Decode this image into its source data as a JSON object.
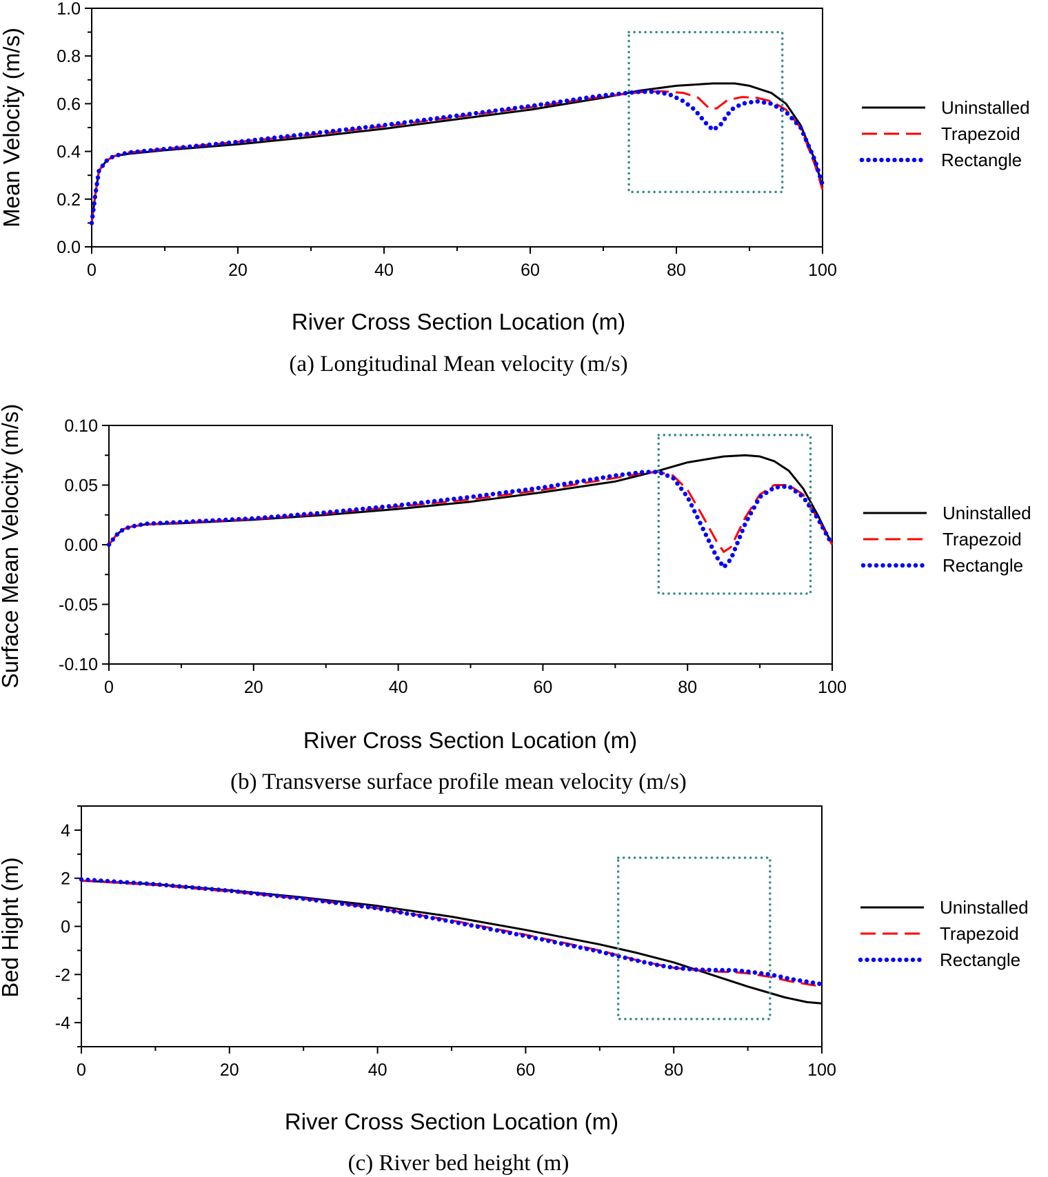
{
  "chart_data": [
    {
      "type": "line",
      "caption": "(a) Longitudinal Mean velocity (m/s)",
      "xlabel": "River Cross Section Location (m)",
      "ylabel": "Mean Velocity (m/s)",
      "xlim": [
        0,
        100
      ],
      "ylim": [
        0.0,
        1.0
      ],
      "xticks": [
        0,
        20,
        40,
        60,
        80,
        100
      ],
      "yticks": [
        0.0,
        0.2,
        0.4,
        0.6,
        0.8,
        1.0
      ],
      "xtick_labels": [
        "0",
        "20",
        "40",
        "60",
        "80",
        "100"
      ],
      "ytick_labels": [
        "0.0",
        "0.2",
        "0.4",
        "0.6",
        "0.8",
        "1.0"
      ],
      "highlight_box": {
        "x": [
          73.5,
          94.5
        ],
        "y": [
          0.23,
          0.9
        ]
      },
      "legend_position": "right",
      "series": [
        {
          "name": "Uninstalled",
          "x": [
            0,
            0.5,
            1,
            2,
            3,
            5,
            10,
            20,
            30,
            40,
            50,
            60,
            70,
            75,
            80,
            85,
            88,
            90,
            93,
            95,
            97,
            99,
            100
          ],
          "y": [
            0.1,
            0.22,
            0.32,
            0.36,
            0.38,
            0.39,
            0.405,
            0.43,
            0.46,
            0.495,
            0.535,
            0.575,
            0.625,
            0.655,
            0.675,
            0.685,
            0.685,
            0.675,
            0.645,
            0.6,
            0.51,
            0.36,
            0.25
          ]
        },
        {
          "name": "Trapezoid",
          "x": [
            0,
            0.5,
            1,
            2,
            3,
            5,
            10,
            20,
            30,
            40,
            50,
            60,
            70,
            75,
            78,
            81,
            83,
            84.5,
            85.5,
            87,
            89,
            91,
            93,
            95,
            97,
            99,
            100
          ],
          "y": [
            0.1,
            0.22,
            0.32,
            0.36,
            0.38,
            0.395,
            0.41,
            0.44,
            0.47,
            0.505,
            0.545,
            0.585,
            0.63,
            0.648,
            0.652,
            0.645,
            0.625,
            0.58,
            0.58,
            0.615,
            0.628,
            0.625,
            0.61,
            0.575,
            0.5,
            0.34,
            0.24
          ]
        },
        {
          "name": "Rectangle",
          "x": [
            0,
            0.5,
            1,
            2,
            3,
            5,
            10,
            20,
            30,
            40,
            50,
            60,
            70,
            75,
            77,
            79,
            81,
            82.5,
            84,
            85,
            86,
            87.5,
            89,
            91,
            93,
            95,
            97,
            99,
            100
          ],
          "y": [
            0.1,
            0.22,
            0.32,
            0.36,
            0.38,
            0.395,
            0.41,
            0.44,
            0.475,
            0.51,
            0.55,
            0.59,
            0.635,
            0.65,
            0.65,
            0.64,
            0.61,
            0.575,
            0.52,
            0.49,
            0.51,
            0.575,
            0.6,
            0.61,
            0.6,
            0.565,
            0.5,
            0.36,
            0.26
          ]
        }
      ]
    },
    {
      "type": "line",
      "caption": "(b) Transverse surface profile mean velocity (m/s)",
      "xlabel": "River Cross Section Location (m)",
      "ylabel": "Surface Mean Velocity (m/s)",
      "xlim": [
        0,
        100
      ],
      "ylim": [
        -0.1,
        0.1
      ],
      "xticks": [
        0,
        20,
        40,
        60,
        80,
        100
      ],
      "yticks": [
        -0.1,
        -0.05,
        0.0,
        0.05,
        0.1
      ],
      "xtick_labels": [
        "0",
        "20",
        "40",
        "60",
        "80",
        "100"
      ],
      "ytick_labels": [
        "-0.10",
        "-0.05",
        "0.00",
        "0.05",
        "0.10"
      ],
      "highlight_box": {
        "x": [
          76,
          97
        ],
        "y": [
          -0.041,
          0.092
        ]
      },
      "legend_position": "right",
      "series": [
        {
          "name": "Uninstalled",
          "x": [
            0,
            1,
            2,
            3,
            5,
            10,
            20,
            30,
            40,
            50,
            60,
            70,
            76,
            80,
            85,
            88,
            90,
            92,
            94,
            96,
            98,
            100
          ],
          "y": [
            0.0,
            0.008,
            0.013,
            0.015,
            0.017,
            0.018,
            0.021,
            0.025,
            0.03,
            0.036,
            0.044,
            0.053,
            0.062,
            0.069,
            0.074,
            0.075,
            0.074,
            0.07,
            0.062,
            0.047,
            0.025,
            0.0
          ]
        },
        {
          "name": "Trapezoid",
          "x": [
            0,
            1,
            2,
            3,
            5,
            10,
            20,
            30,
            40,
            50,
            60,
            70,
            74,
            76,
            78,
            80,
            82,
            84,
            85,
            86,
            88,
            90,
            92,
            94,
            96,
            98,
            100
          ],
          "y": [
            0.0,
            0.008,
            0.013,
            0.015,
            0.017,
            0.0185,
            0.0215,
            0.026,
            0.032,
            0.038,
            0.046,
            0.056,
            0.06,
            0.061,
            0.058,
            0.046,
            0.025,
            0.003,
            -0.006,
            -0.002,
            0.023,
            0.042,
            0.05,
            0.05,
            0.042,
            0.022,
            0.0
          ]
        },
        {
          "name": "Rectangle",
          "x": [
            0,
            1,
            2,
            3,
            5,
            10,
            20,
            30,
            40,
            50,
            60,
            70,
            74,
            76,
            78,
            80,
            82,
            84,
            85,
            86,
            88,
            90,
            92,
            94,
            96,
            98,
            100
          ],
          "y": [
            0.0,
            0.008,
            0.013,
            0.015,
            0.0175,
            0.019,
            0.022,
            0.027,
            0.033,
            0.04,
            0.048,
            0.058,
            0.061,
            0.061,
            0.056,
            0.04,
            0.015,
            -0.01,
            -0.019,
            -0.012,
            0.018,
            0.04,
            0.048,
            0.049,
            0.04,
            0.022,
            0.0
          ]
        }
      ]
    },
    {
      "type": "line",
      "caption": "(c) River bed height (m)",
      "xlabel": "River Cross Section Location (m)",
      "ylabel": "Bed Hight (m)",
      "xlim": [
        0,
        100
      ],
      "ylim": [
        -5,
        5
      ],
      "xticks": [
        0,
        20,
        40,
        60,
        80,
        100
      ],
      "yticks": [
        -4,
        -2,
        0,
        2,
        4
      ],
      "xtick_labels": [
        "0",
        "20",
        "40",
        "60",
        "80",
        "100"
      ],
      "ytick_labels": [
        "-4",
        "-2",
        "0",
        "2",
        "4"
      ],
      "highlight_box": {
        "x": [
          72.5,
          93
        ],
        "y": [
          -3.85,
          2.85
        ]
      },
      "legend_position": "right",
      "series": [
        {
          "name": "Uninstalled",
          "x": [
            0,
            10,
            20,
            30,
            40,
            50,
            60,
            70,
            75,
            80,
            85,
            90,
            95,
            98,
            100
          ],
          "y": [
            1.9,
            1.75,
            1.5,
            1.2,
            0.85,
            0.4,
            -0.15,
            -0.75,
            -1.1,
            -1.5,
            -2.0,
            -2.5,
            -2.95,
            -3.15,
            -3.2
          ]
        },
        {
          "name": "Trapezoid",
          "x": [
            0,
            10,
            20,
            30,
            40,
            50,
            60,
            70,
            75,
            78,
            80,
            83,
            86,
            88,
            90,
            93,
            96,
            100
          ],
          "y": [
            1.9,
            1.72,
            1.45,
            1.15,
            0.75,
            0.25,
            -0.35,
            -1.0,
            -1.4,
            -1.6,
            -1.72,
            -1.82,
            -1.88,
            -1.9,
            -1.95,
            -2.1,
            -2.3,
            -2.5
          ]
        },
        {
          "name": "Rectangle",
          "x": [
            0,
            10,
            20,
            30,
            40,
            50,
            60,
            70,
            75,
            78,
            80,
            83,
            86,
            88,
            90,
            93,
            96,
            100
          ],
          "y": [
            1.95,
            1.75,
            1.48,
            1.15,
            0.75,
            0.2,
            -0.4,
            -1.05,
            -1.42,
            -1.62,
            -1.72,
            -1.8,
            -1.82,
            -1.82,
            -1.88,
            -2.0,
            -2.2,
            -2.4
          ]
        }
      ]
    }
  ],
  "legend": [
    {
      "label": "Uninstalled",
      "color": "#000000",
      "style": "solid"
    },
    {
      "label": "Trapezoid",
      "color": "#ff0000",
      "style": "dashed"
    },
    {
      "label": "Rectangle",
      "color": "#0000ff",
      "style": "dotted"
    }
  ],
  "colors": {
    "Uninstalled": "#000000",
    "Trapezoid": "#ff0000",
    "Rectangle": "#0000ff",
    "highlight_box": "#2e8b8b"
  }
}
